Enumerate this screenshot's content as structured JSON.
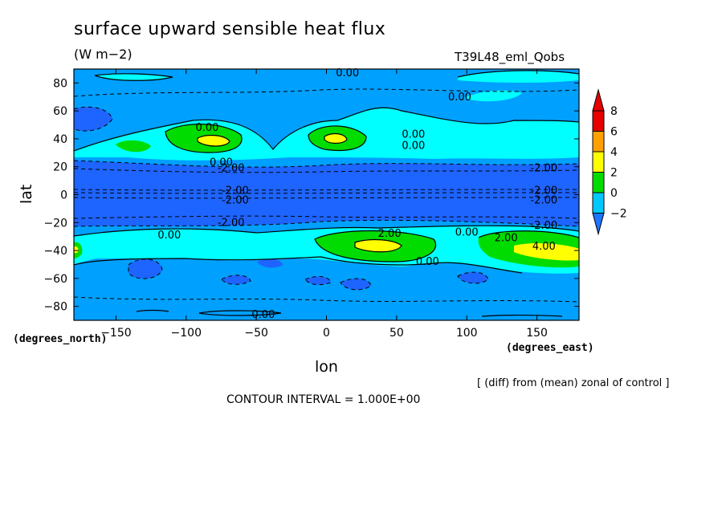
{
  "header": {
    "title": "surface upward sensible heat flux",
    "units": "(W m−2)",
    "run_name": "T39L48_eml_Qobs"
  },
  "footer": {
    "diff_note": "[ (diff) from (mean) zonal of control ]",
    "contour_interval": "CONTOUR INTERVAL = 1.000E+00"
  },
  "chart_data": {
    "type": "heatmap",
    "title": "surface upward sensible heat flux",
    "xlabel": "lon",
    "ylabel": "lat",
    "x_units": "(degrees_east)",
    "y_units": "(degrees_north)",
    "xlim": [
      -180,
      180
    ],
    "ylim": [
      -90,
      90
    ],
    "x_ticks": [
      -150,
      -100,
      -50,
      0,
      50,
      100,
      150
    ],
    "x_tick_labels": [
      "−150",
      "−100",
      "−50",
      "0",
      "50",
      "100",
      "150"
    ],
    "y_ticks": [
      80,
      60,
      40,
      20,
      0,
      -20,
      -40,
      -60,
      -80
    ],
    "y_tick_labels": [
      "80",
      "60",
      "40",
      "20",
      "0",
      "−20",
      "−40",
      "−60",
      "−80"
    ],
    "colorbar": {
      "levels": [
        -2,
        0,
        2,
        4,
        6,
        8
      ],
      "labels": [
        "−2",
        "0",
        "2",
        "4",
        "6",
        "8"
      ],
      "colors": [
        "#1e74ff",
        "#00c8ff",
        "#00dc00",
        "#ffff00",
        "#ffa000",
        "#e60000"
      ],
      "below_color": "#1e50ff",
      "overflow_arrows": true
    },
    "contour_labels": [
      {
        "text": "0.00",
        "lon": 15,
        "lat": 87
      },
      {
        "text": "0.00",
        "lon": 95,
        "lat": 70
      },
      {
        "text": "0.00",
        "lon": -85,
        "lat": 48
      },
      {
        "text": "0.00",
        "lon": 62,
        "lat": 43
      },
      {
        "text": "0.00",
        "lon": 62,
        "lat": 35
      },
      {
        "text": "0.00",
        "lon": -75,
        "lat": 23
      },
      {
        "text": "-2.00",
        "lon": -68,
        "lat": 19
      },
      {
        "text": "-2.00",
        "lon": 155,
        "lat": 19
      },
      {
        "text": "-2.00",
        "lon": -65,
        "lat": 3
      },
      {
        "text": "-2.00",
        "lon": 155,
        "lat": 3
      },
      {
        "text": "-2.00",
        "lon": -65,
        "lat": -4
      },
      {
        "text": "-2.00",
        "lon": 155,
        "lat": -4
      },
      {
        "text": "-2.00",
        "lon": -68,
        "lat": -20
      },
      {
        "text": "-2.00",
        "lon": 155,
        "lat": -22
      },
      {
        "text": "0.00",
        "lon": -112,
        "lat": -29
      },
      {
        "text": "2.00",
        "lon": 45,
        "lat": -28
      },
      {
        "text": "0.00",
        "lon": 100,
        "lat": -27
      },
      {
        "text": "2.00",
        "lon": 128,
        "lat": -31
      },
      {
        "text": "4.00",
        "lon": 155,
        "lat": -37
      },
      {
        "text": "0.00",
        "lon": 72,
        "lat": -48
      },
      {
        "text": "0.00",
        "lon": -45,
        "lat": -86
      }
    ],
    "grid": false
  }
}
